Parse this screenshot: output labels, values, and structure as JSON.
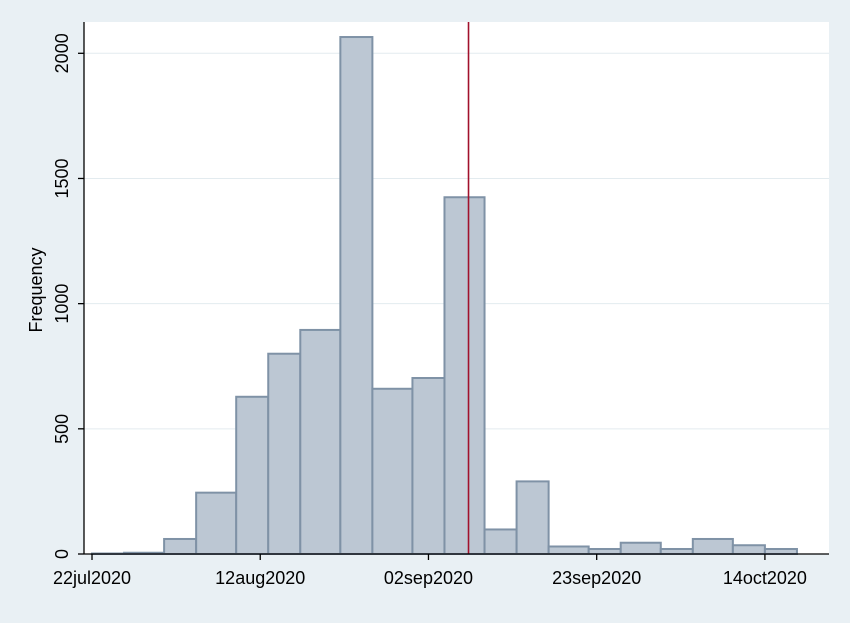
{
  "colors": {
    "background": "#e9f0f4",
    "plot_background": "#ffffff",
    "bar_fill": "#bcc7d3",
    "bar_stroke": "#7f92a6",
    "gridline": "#e3ebef",
    "reference_line": "#a1112c"
  },
  "chart_data": {
    "type": "bar",
    "title": "",
    "xlabel": "",
    "ylabel": "Frequency",
    "ylim": [
      0,
      2125
    ],
    "yticks": [
      0,
      500,
      1000,
      1500,
      2000
    ],
    "ytick_labels": [
      "0",
      "500",
      "1000",
      "1500",
      "2000"
    ],
    "xlim": [
      "2020-07-21",
      "2020-10-22"
    ],
    "xticks": [
      "2020-07-22",
      "2020-08-12",
      "2020-09-02",
      "2020-09-23",
      "2020-10-14"
    ],
    "xtick_labels": [
      "22jul2020",
      "12aug2020",
      "02sep2020",
      "23sep2020",
      "14oct2020"
    ],
    "grid": true,
    "legend": "none",
    "bin_width_days": 4.4,
    "bins": [
      {
        "start": "2020-07-22",
        "end": "2020-07-26",
        "value": 2
      },
      {
        "start": "2020-07-26",
        "end": "2020-07-31",
        "value": 5
      },
      {
        "start": "2020-07-31",
        "end": "2020-08-04",
        "value": 60
      },
      {
        "start": "2020-08-04",
        "end": "2020-08-09",
        "value": 245
      },
      {
        "start": "2020-08-09",
        "end": "2020-08-13",
        "value": 628
      },
      {
        "start": "2020-08-13",
        "end": "2020-08-17",
        "value": 800
      },
      {
        "start": "2020-08-17",
        "end": "2020-08-22",
        "value": 895
      },
      {
        "start": "2020-08-22",
        "end": "2020-08-26",
        "value": 2065
      },
      {
        "start": "2020-08-26",
        "end": "2020-08-31",
        "value": 660
      },
      {
        "start": "2020-08-31",
        "end": "2020-09-04",
        "value": 703
      },
      {
        "start": "2020-09-04",
        "end": "2020-09-09",
        "value": 1425
      },
      {
        "start": "2020-09-09",
        "end": "2020-09-13",
        "value": 98
      },
      {
        "start": "2020-09-13",
        "end": "2020-09-17",
        "value": 290
      },
      {
        "start": "2020-09-17",
        "end": "2020-09-22",
        "value": 30
      },
      {
        "start": "2020-09-22",
        "end": "2020-09-26",
        "value": 20
      },
      {
        "start": "2020-09-26",
        "end": "2020-10-01",
        "value": 45
      },
      {
        "start": "2020-10-01",
        "end": "2020-10-05",
        "value": 20
      },
      {
        "start": "2020-10-05",
        "end": "2020-10-10",
        "value": 60
      },
      {
        "start": "2020-10-10",
        "end": "2020-10-14",
        "value": 35
      },
      {
        "start": "2020-10-14",
        "end": "2020-10-18",
        "value": 20
      }
    ],
    "reference_line": {
      "x": "2020-09-07"
    }
  }
}
